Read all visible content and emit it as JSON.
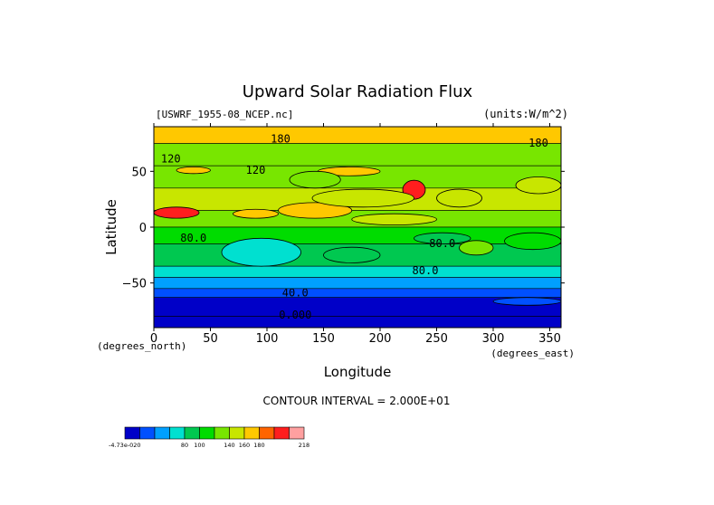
{
  "chart_data": {
    "type": "heatmap",
    "title": "Upward Solar Radiation Flux",
    "subtitle_left": "[USWRF_1955-08_NCEP.nc]",
    "subtitle_right": "(units:W/m^2)",
    "xlabel": "Longitude",
    "ylabel": "Latitude",
    "x_unit_note": "(degrees_east)",
    "y_unit_note": "(degrees_north)",
    "xlim": [
      0,
      360
    ],
    "ylim": [
      -90,
      90
    ],
    "x_ticks": [
      0,
      50,
      100,
      150,
      200,
      250,
      300,
      350
    ],
    "y_ticks": [
      -50,
      0,
      50
    ],
    "x_tick_labels": [
      "0",
      "50",
      "100",
      "150",
      "200",
      "250",
      "300",
      "350"
    ],
    "y_tick_labels": [
      "−50",
      "0",
      "50"
    ],
    "contour_interval_text": "CONTOUR INTERVAL = 2.000E+01",
    "contour_labels": [
      {
        "text": "180",
        "lon": 112,
        "lat": 76
      },
      {
        "text": "180",
        "lon": 340,
        "lat": 72
      },
      {
        "text": "120",
        "lon": 15,
        "lat": 58
      },
      {
        "text": "120",
        "lon": 90,
        "lat": 48
      },
      {
        "text": "80.0",
        "lon": 35,
        "lat": -13
      },
      {
        "text": "80.0",
        "lon": 255,
        "lat": -18
      },
      {
        "text": "80.0",
        "lon": 240,
        "lat": -42
      },
      {
        "text": "40.0",
        "lon": 125,
        "lat": -62
      },
      {
        "text": "0.000",
        "lon": 125,
        "lat": -82
      }
    ],
    "bands": [
      {
        "lat_top": 90,
        "lat_bottom": 75,
        "value": 170
      },
      {
        "lat_top": 75,
        "lat_bottom": 55,
        "value": 130
      },
      {
        "lat_top": 55,
        "lat_bottom": 35,
        "value": 120
      },
      {
        "lat_top": 35,
        "lat_bottom": 15,
        "value": 140
      },
      {
        "lat_top": 15,
        "lat_bottom": 0,
        "value": 125
      },
      {
        "lat_top": 0,
        "lat_bottom": -15,
        "value": 100
      },
      {
        "lat_top": -15,
        "lat_bottom": -35,
        "value": 85
      },
      {
        "lat_top": -35,
        "lat_bottom": -45,
        "value": 70
      },
      {
        "lat_top": -45,
        "lat_bottom": -55,
        "value": 55
      },
      {
        "lat_top": -55,
        "lat_bottom": -63,
        "value": 35
      },
      {
        "lat_top": -63,
        "lat_bottom": -80,
        "value": 10
      },
      {
        "lat_top": -80,
        "lat_bottom": -90,
        "value": -5
      }
    ],
    "features": [
      {
        "lon0": 0,
        "lon1": 40,
        "lat0": 8,
        "lat1": 18,
        "value": 200
      },
      {
        "lon0": 70,
        "lon1": 110,
        "lat0": 8,
        "lat1": 16,
        "value": 175
      },
      {
        "lon0": 220,
        "lon1": 240,
        "lat0": 25,
        "lat1": 42,
        "value": 200
      },
      {
        "lon0": 145,
        "lon1": 200,
        "lat0": 46,
        "lat1": 54,
        "value": 170
      },
      {
        "lon0": 20,
        "lon1": 50,
        "lat0": 48,
        "lat1": 54,
        "value": 170
      },
      {
        "lon0": 110,
        "lon1": 175,
        "lat0": 8,
        "lat1": 22,
        "value": 170
      },
      {
        "lon0": 175,
        "lon1": 250,
        "lat0": 2,
        "lat1": 12,
        "value": 150
      },
      {
        "lon0": 140,
        "lon1": 230,
        "lat0": 18,
        "lat1": 34,
        "value": 145
      },
      {
        "lon0": 120,
        "lon1": 165,
        "lat0": 35,
        "lat1": 50,
        "value": 125
      },
      {
        "lon0": 250,
        "lon1": 290,
        "lat0": 18,
        "lat1": 34,
        "value": 140
      },
      {
        "lon0": 320,
        "lon1": 360,
        "lat0": 30,
        "lat1": 45,
        "value": 150
      },
      {
        "lon0": 60,
        "lon1": 130,
        "lat0": -35,
        "lat1": -10,
        "value": 75
      },
      {
        "lon0": 230,
        "lon1": 280,
        "lat0": -15,
        "lat1": -5,
        "value": 95
      },
      {
        "lon0": 270,
        "lon1": 300,
        "lat0": -25,
        "lat1": -12,
        "value": 130
      },
      {
        "lon0": 150,
        "lon1": 200,
        "lat0": -32,
        "lat1": -18,
        "value": 95
      },
      {
        "lon0": 310,
        "lon1": 360,
        "lat0": -20,
        "lat1": -5,
        "value": 100
      },
      {
        "lon0": 300,
        "lon1": 360,
        "lat0": -70,
        "lat1": -63,
        "value": 20
      }
    ],
    "colorbar": {
      "levels": [
        -4.73e-20,
        20,
        40,
        60,
        80,
        100,
        120,
        140,
        160,
        180,
        200,
        218
      ],
      "labels": [
        "-4.73e-020",
        "80",
        "100",
        "140",
        "160",
        "180",
        "218"
      ],
      "colors": [
        "#0000c8",
        "#0050ff",
        "#00a0ff",
        "#00e0d0",
        "#00c850",
        "#00dc00",
        "#78e600",
        "#c8e600",
        "#ffc800",
        "#ff6400",
        "#ff1e1e",
        "#ffa0a0"
      ]
    }
  }
}
